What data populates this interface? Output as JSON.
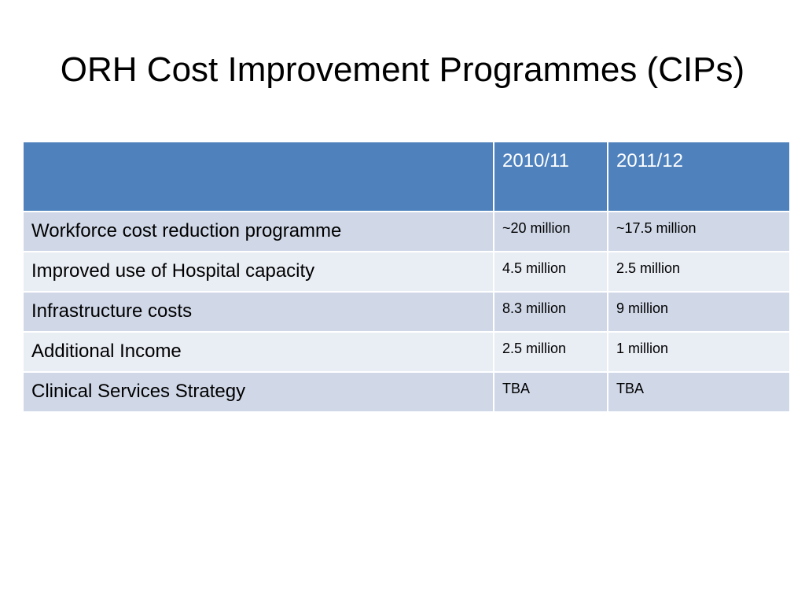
{
  "slide": {
    "title": "ORH Cost Improvement Programmes (CIPs)"
  },
  "table": {
    "header": [
      "",
      "2010/11",
      "2011/12"
    ],
    "rows": [
      {
        "label": "Workforce cost reduction programme",
        "y2010_11": "~20 million",
        "y2011_12": "~17.5 million"
      },
      {
        "label": "Improved use of Hospital capacity",
        "y2010_11": "4.5 million",
        "y2011_12": "2.5 million"
      },
      {
        "label": "Infrastructure costs",
        "y2010_11": "8.3 million",
        "y2011_12": "9 million"
      },
      {
        "label": "Additional Income",
        "y2010_11": "2.5 million",
        "y2011_12": "1 million"
      },
      {
        "label": "Clinical Services Strategy",
        "y2010_11": "TBA",
        "y2011_12": "TBA"
      }
    ]
  },
  "colors": {
    "header_bg": "#4f81bd",
    "row_odd_bg": "#d0d8e8",
    "row_even_bg": "#e9edf4"
  }
}
